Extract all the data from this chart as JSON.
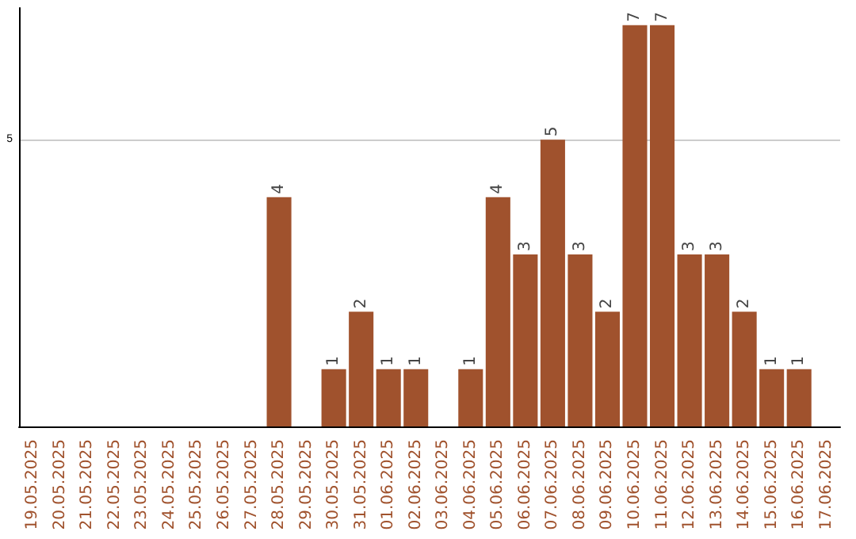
{
  "chart_data": {
    "type": "bar",
    "categories": [
      "19.05.2025",
      "20.05.2025",
      "21.05.2025",
      "22.05.2025",
      "23.05.2025",
      "24.05.2025",
      "25.05.2025",
      "26.05.2025",
      "27.05.2025",
      "28.05.2025",
      "29.05.2025",
      "30.05.2025",
      "31.05.2025",
      "01.06.2025",
      "02.06.2025",
      "03.06.2025",
      "04.06.2025",
      "05.06.2025",
      "06.06.2025",
      "07.06.2025",
      "08.06.2025",
      "09.06.2025",
      "10.06.2025",
      "11.06.2025",
      "12.06.2025",
      "13.06.2025",
      "14.06.2025",
      "15.06.2025",
      "16.06.2025",
      "17.06.2025"
    ],
    "values": [
      0,
      0,
      0,
      0,
      0,
      0,
      0,
      0,
      0,
      4,
      0,
      1,
      2,
      1,
      1,
      0,
      1,
      4,
      3,
      5,
      3,
      2,
      7,
      7,
      3,
      3,
      2,
      1,
      1,
      0
    ],
    "value_labels": [
      null,
      null,
      null,
      null,
      null,
      null,
      null,
      null,
      null,
      "4",
      null,
      "1",
      "2",
      "1",
      "1",
      null,
      "1",
      "4",
      "3",
      "5",
      "3",
      "2",
      "7",
      "7",
      "3",
      "3",
      "2",
      "1",
      "1",
      null
    ],
    "color": "#a0522d",
    "ylim": [
      0,
      7.3
    ],
    "yticks": [
      5
    ],
    "grid": "y"
  }
}
